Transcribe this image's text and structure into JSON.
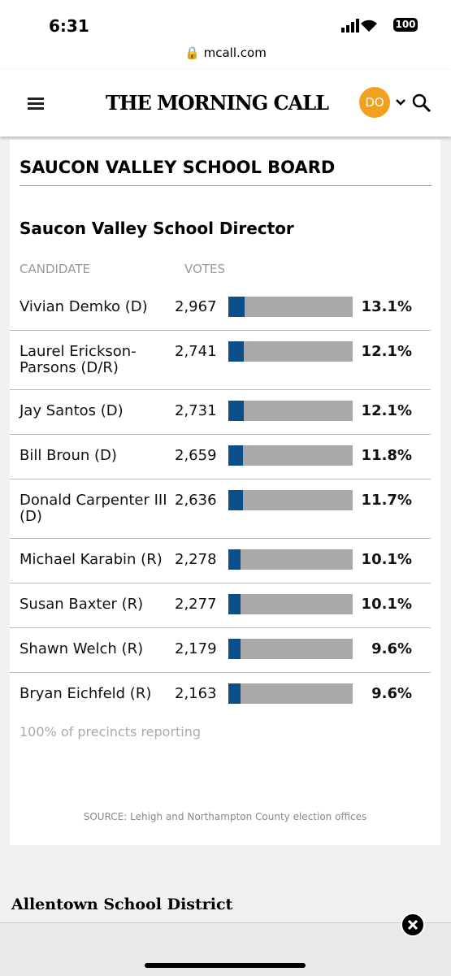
{
  "status_bar": {
    "time": "6:31",
    "battery": "100"
  },
  "url": "mcall.com",
  "header": {
    "logo": "THE MORNING CALL",
    "avatar": "DO"
  },
  "section_title": "SAUCON VALLEY SCHOOL BOARD",
  "race": {
    "title": "Saucon Valley School Director",
    "columns": [
      "CANDIDATE",
      "VOTES"
    ],
    "bar_range": [
      0,
      100
    ],
    "rows": [
      {
        "candidate": "Vivian Demko (D)",
        "votes": "2,967",
        "percent": 13.1,
        "percent_label": "13.1%"
      },
      {
        "candidate": "Laurel Erickson-Parsons (D/R)",
        "votes": "2,741",
        "percent": 12.1,
        "percent_label": "12.1%"
      },
      {
        "candidate": "Jay Santos (D)",
        "votes": "2,731",
        "percent": 12.1,
        "percent_label": "12.1%"
      },
      {
        "candidate": "Bill Broun (D)",
        "votes": "2,659",
        "percent": 11.8,
        "percent_label": "11.8%"
      },
      {
        "candidate": "Donald Carpenter III (D)",
        "votes": "2,636",
        "percent": 11.7,
        "percent_label": "11.7%"
      },
      {
        "candidate": "Michael Karabin (R)",
        "votes": "2,278",
        "percent": 10.1,
        "percent_label": "10.1%"
      },
      {
        "candidate": "Susan Baxter (R)",
        "votes": "2,277",
        "percent": 10.1,
        "percent_label": "10.1%"
      },
      {
        "candidate": "Shawn Welch (R)",
        "votes": "2,179",
        "percent": 9.6,
        "percent_label": "9.6%"
      },
      {
        "candidate": "Bryan Eichfeld (R)",
        "votes": "2,163",
        "percent": 9.6,
        "percent_label": "9.6%"
      }
    ],
    "reporting": "100% of precincts reporting",
    "source": "SOURCE: Lehigh and Northampton County election offices"
  },
  "next_section": "Allentown School District"
}
